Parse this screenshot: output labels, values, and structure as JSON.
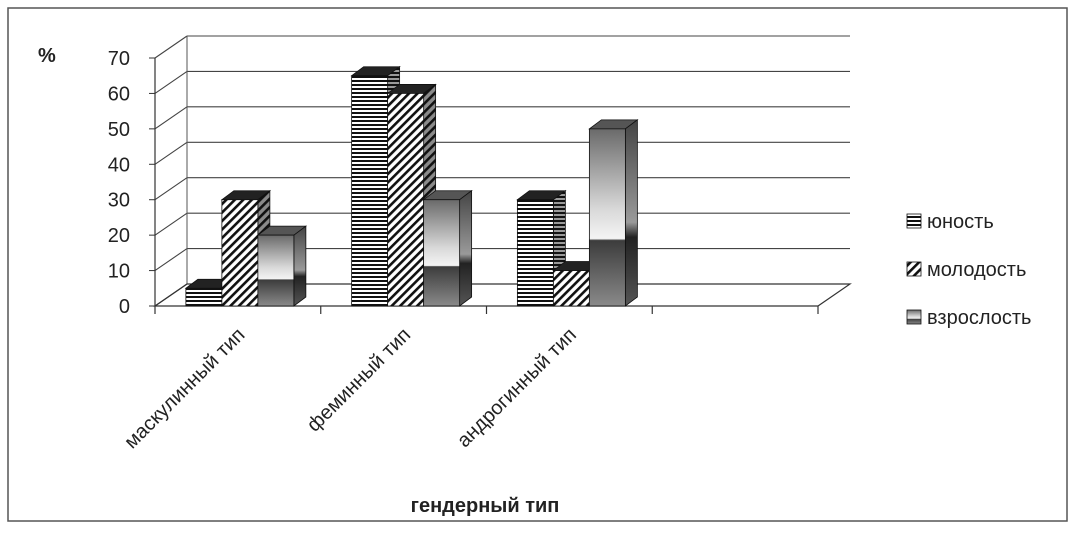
{
  "chart_data": {
    "type": "bar",
    "title": "",
    "ylabel": "%",
    "xlabel": "гендерный тип",
    "ylim": [
      0,
      70
    ],
    "yticks": [
      0,
      10,
      20,
      30,
      40,
      50,
      60,
      70
    ],
    "grid": true,
    "legend_position": "right",
    "categories": [
      "маскулинный тип",
      "феминный тип",
      "андрогинный тип"
    ],
    "series": [
      {
        "name": "юность",
        "values": [
          5,
          65,
          30
        ],
        "pattern": "horizontal-stripes"
      },
      {
        "name": "молодость",
        "values": [
          30,
          60,
          10
        ],
        "pattern": "diagonal-hatch"
      },
      {
        "name": "взрослость",
        "values": [
          20,
          30,
          50
        ],
        "pattern": "gray-gradient"
      }
    ]
  }
}
